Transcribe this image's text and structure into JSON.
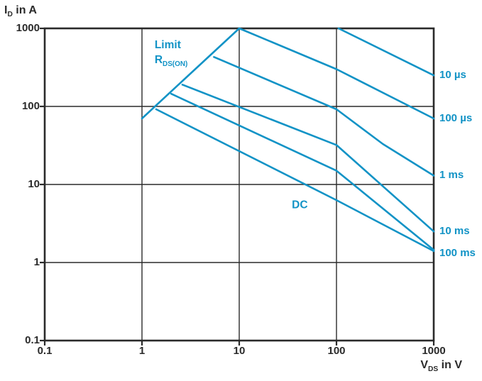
{
  "chart_data": {
    "type": "line",
    "title": "",
    "x_axis": {
      "title_pre": "V",
      "title_sub": "DS",
      "title_post": " in V",
      "scale": "log",
      "min": 0.1,
      "max": 1000,
      "ticks": [
        "0.1",
        "1",
        "10",
        "100",
        "1000"
      ]
    },
    "y_axis": {
      "title_pre": "I",
      "title_sub": "D",
      "title_post": " in A",
      "scale": "log",
      "min": 0.1,
      "max": 1000,
      "ticks": [
        "1000",
        "100",
        "10",
        "1",
        "0.1"
      ]
    },
    "grid": "on",
    "legend_position": "right-edge-labels",
    "series": [
      {
        "name": "limit-rdson",
        "label": "",
        "points": [
          [
            1,
            70
          ],
          [
            10,
            1000
          ]
        ]
      },
      {
        "name": "pulse-10us",
        "label": "10 µs",
        "label_dy": 0,
        "points": [
          [
            105,
            1000
          ],
          [
            1000,
            250
          ]
        ]
      },
      {
        "name": "pulse-100us",
        "label": "100 µs",
        "label_dy": 0,
        "points": [
          [
            10,
            1000
          ],
          [
            100,
            300
          ],
          [
            1000,
            70
          ]
        ]
      },
      {
        "name": "pulse-1ms",
        "label": "1 ms",
        "label_dy": 0,
        "points": [
          [
            5.5,
            430
          ],
          [
            100,
            92
          ],
          [
            300,
            33
          ],
          [
            1000,
            13
          ]
        ]
      },
      {
        "name": "pulse-10ms",
        "label": "10 ms",
        "label_dy": 0,
        "points": [
          [
            2.6,
            190
          ],
          [
            100,
            32
          ],
          [
            1000,
            2.5
          ]
        ]
      },
      {
        "name": "pulse-100ms",
        "label": "100 ms",
        "label_dy": 5,
        "points": [
          [
            2.0,
            145
          ],
          [
            100,
            15
          ],
          [
            1000,
            1.45
          ]
        ]
      },
      {
        "name": "dc",
        "label": "",
        "label_dy": 0,
        "points": [
          [
            1.4,
            92
          ],
          [
            100,
            6.3
          ],
          [
            1000,
            1.4
          ]
        ]
      }
    ],
    "annotations": [
      {
        "name": "limit-rdson-label",
        "line1": "Limit",
        "line2_pre": "R",
        "line2_sub": "DS(ON)",
        "x": 1.35,
        "y": 760,
        "anchor": "top-left"
      },
      {
        "name": "dc-label",
        "text": "DC",
        "x": 42,
        "y": 5.45,
        "anchor": "center"
      }
    ],
    "style": {
      "curve_color": "#1293c6",
      "axis_color": "#2a2a2a",
      "grid_color": "#2a2a2a",
      "background_color": "#ffffff"
    }
  }
}
